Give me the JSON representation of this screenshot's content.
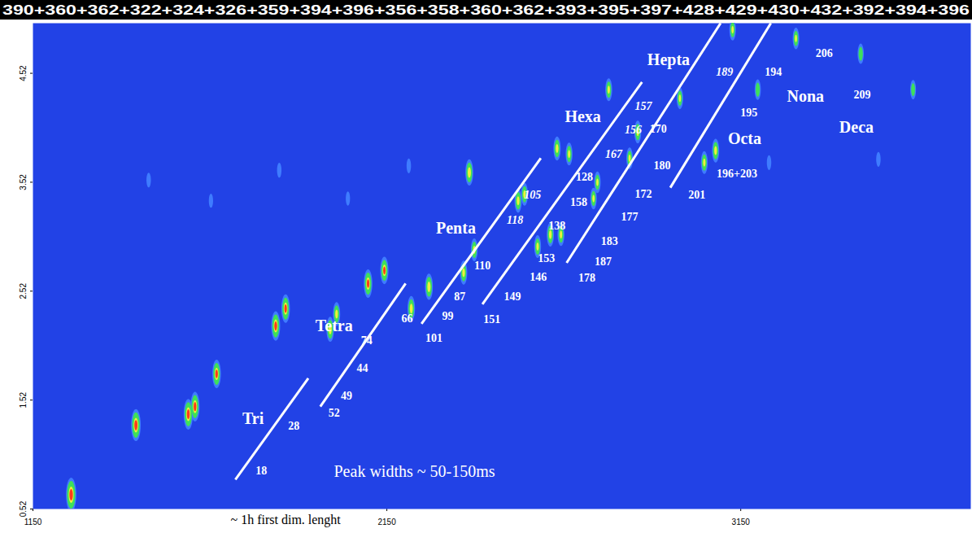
{
  "chart_data": {
    "type": "heatmap",
    "header": "390+360+362+322+324+326+359+394+396+356+358+360+362+393+395+397+428+429+430+432+392+394+396",
    "xlim": [
      1150,
      3800
    ],
    "xticks": [
      1150,
      2150,
      3150
    ],
    "ylim": [
      0.52,
      4.98
    ],
    "yticks": [
      0.52,
      1.52,
      2.52,
      3.52,
      4.52
    ],
    "grid": false,
    "peaks": {
      "x": [
        1258,
        1441,
        1589,
        1608,
        1669,
        1836,
        1864,
        1990,
        2008,
        2097,
        2143,
        2219,
        2269,
        2367,
        2397,
        2383,
        2521,
        2539,
        2576,
        2612,
        2642,
        2631,
        2665,
        2734,
        2745,
        2777,
        2836,
        2859,
        2978,
        3047,
        3079,
        3127,
        3198,
        3306,
        3489,
        3637,
        1477,
        1846,
        2212,
        3539,
        3230,
        1653,
        2040
      ],
      "y": [
        0.65,
        1.29,
        1.39,
        1.46,
        1.76,
        2.2,
        2.36,
        2.17,
        2.31,
        2.59,
        2.71,
        2.36,
        2.56,
        2.69,
        2.9,
        3.61,
        3.35,
        3.41,
        2.93,
        3.04,
        3.04,
        3.83,
        3.78,
        3.37,
        3.52,
        4.37,
        3.74,
        3.98,
        4.29,
        3.7,
        3.81,
        4.92,
        4.37,
        4.84,
        4.7,
        4.37,
        3.54,
        3.63,
        3.67,
        3.73,
        3.7,
        3.35,
        3.37
      ],
      "intensity": [
        1.0,
        0.9,
        0.85,
        0.8,
        0.75,
        0.8,
        0.75,
        0.6,
        0.55,
        0.75,
        0.7,
        0.6,
        0.65,
        0.55,
        0.5,
        0.65,
        0.55,
        0.5,
        0.5,
        0.55,
        0.5,
        0.55,
        0.5,
        0.45,
        0.45,
        0.5,
        0.45,
        0.5,
        0.45,
        0.5,
        0.55,
        0.45,
        0.4,
        0.45,
        0.4,
        0.35,
        0.15,
        0.15,
        0.15,
        0.15,
        0.15,
        0.12,
        0.12
      ]
    },
    "boundaries": [
      {
        "x1": 1722,
        "y1": 0.79,
        "x2": 1928,
        "y2": 1.72
      },
      {
        "x1": 1962,
        "y1": 1.46,
        "x2": 2203,
        "y2": 2.59
      },
      {
        "x1": 2248,
        "y1": 2.22,
        "x2": 2585,
        "y2": 3.74
      },
      {
        "x1": 2420,
        "y1": 2.4,
        "x2": 2871,
        "y2": 4.44
      },
      {
        "x1": 2658,
        "y1": 2.78,
        "x2": 3093,
        "y2": 4.98
      },
      {
        "x1": 2951,
        "y1": 3.47,
        "x2": 3235,
        "y2": 4.98
      }
    ],
    "groups": [
      {
        "label": "Tri",
        "x": 1772,
        "y": 1.35
      },
      {
        "label": "Tetra",
        "x": 2001,
        "y": 2.2
      },
      {
        "label": "Penta",
        "x": 2345,
        "y": 3.1
      },
      {
        "label": "Hexa",
        "x": 2704,
        "y": 4.12
      },
      {
        "label": "Hepta",
        "x": 2946,
        "y": 4.64
      },
      {
        "label": "Octa",
        "x": 3161,
        "y": 3.92
      },
      {
        "label": "Nona",
        "x": 3333,
        "y": 4.31
      },
      {
        "label": "Deca",
        "x": 3477,
        "y": 4.02
      }
    ],
    "labels": [
      {
        "label": "18",
        "x": 1795,
        "y": 0.87
      },
      {
        "label": "28",
        "x": 1887,
        "y": 1.28
      },
      {
        "label": "52",
        "x": 2001,
        "y": 1.4
      },
      {
        "label": "49",
        "x": 2036,
        "y": 1.56
      },
      {
        "label": "44",
        "x": 2081,
        "y": 1.81
      },
      {
        "label": "74",
        "x": 2093,
        "y": 2.07
      },
      {
        "label": "66",
        "x": 2207,
        "y": 2.27
      },
      {
        "label": "101",
        "x": 2283,
        "y": 2.09
      },
      {
        "label": "99",
        "x": 2322,
        "y": 2.29
      },
      {
        "label": "87",
        "x": 2356,
        "y": 2.47
      },
      {
        "label": "110",
        "x": 2420,
        "y": 2.75
      },
      {
        "label": "151",
        "x": 2447,
        "y": 2.26
      },
      {
        "label": "149",
        "x": 2505,
        "y": 2.47
      },
      {
        "label": "146",
        "x": 2578,
        "y": 2.65
      },
      {
        "label": "153",
        "x": 2601,
        "y": 2.82
      },
      {
        "label": "138",
        "x": 2631,
        "y": 3.12
      },
      {
        "label": "158",
        "x": 2692,
        "y": 3.34
      },
      {
        "label": "128",
        "x": 2708,
        "y": 3.57
      },
      {
        "label": "178",
        "x": 2715,
        "y": 2.64
      },
      {
        "label": "187",
        "x": 2761,
        "y": 2.79
      },
      {
        "label": "183",
        "x": 2779,
        "y": 2.98
      },
      {
        "label": "177",
        "x": 2836,
        "y": 3.2
      },
      {
        "label": "172",
        "x": 2875,
        "y": 3.41
      },
      {
        "label": "180",
        "x": 2928,
        "y": 3.67
      },
      {
        "label": "170",
        "x": 2917,
        "y": 4.01
      },
      {
        "label": "201",
        "x": 3026,
        "y": 3.4
      },
      {
        "label": "196+203",
        "x": 3139,
        "y": 3.6
      },
      {
        "label": "195",
        "x": 3173,
        "y": 4.16
      },
      {
        "label": "194",
        "x": 3242,
        "y": 4.53
      },
      {
        "label": "206",
        "x": 3386,
        "y": 4.7
      },
      {
        "label": "209",
        "x": 3493,
        "y": 4.32
      }
    ],
    "labels_italic": [
      {
        "label": "118",
        "x": 2512,
        "y": 3.17
      },
      {
        "label": "105",
        "x": 2562,
        "y": 3.4
      },
      {
        "label": "167",
        "x": 2791,
        "y": 3.78
      },
      {
        "label": "156",
        "x": 2846,
        "y": 4.0
      },
      {
        "label": "157",
        "x": 2875,
        "y": 4.22
      },
      {
        "label": "189",
        "x": 3104,
        "y": 4.53
      }
    ],
    "annotations": [
      "Peak widths ~ 50-150ms",
      "~ 1h first dim. lenght"
    ]
  }
}
